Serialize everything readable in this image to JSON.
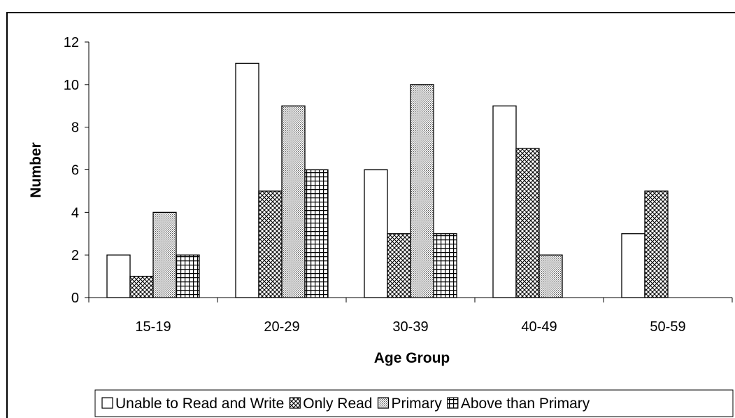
{
  "chart_data": {
    "type": "bar",
    "title": "",
    "xlabel": "Age Group",
    "ylabel": "Number",
    "categories": [
      "15-19",
      "20-29",
      "30-39",
      "40-49",
      "50-59"
    ],
    "series": [
      {
        "name": "Unable to Read and Write",
        "values": [
          2,
          11,
          6,
          9,
          3
        ],
        "pattern": "white"
      },
      {
        "name": "Only Read",
        "values": [
          1,
          5,
          3,
          7,
          5
        ],
        "pattern": "crosshatch"
      },
      {
        "name": "Primary",
        "values": [
          4,
          9,
          10,
          2,
          0
        ],
        "pattern": "dots"
      },
      {
        "name": "Above than Primary",
        "values": [
          2,
          6,
          3,
          0,
          0
        ],
        "pattern": "grid"
      }
    ],
    "ylim": [
      0,
      12
    ],
    "yticks": [
      0,
      2,
      4,
      6,
      8,
      10,
      12
    ],
    "grid": false,
    "legend_position": "bottom"
  }
}
